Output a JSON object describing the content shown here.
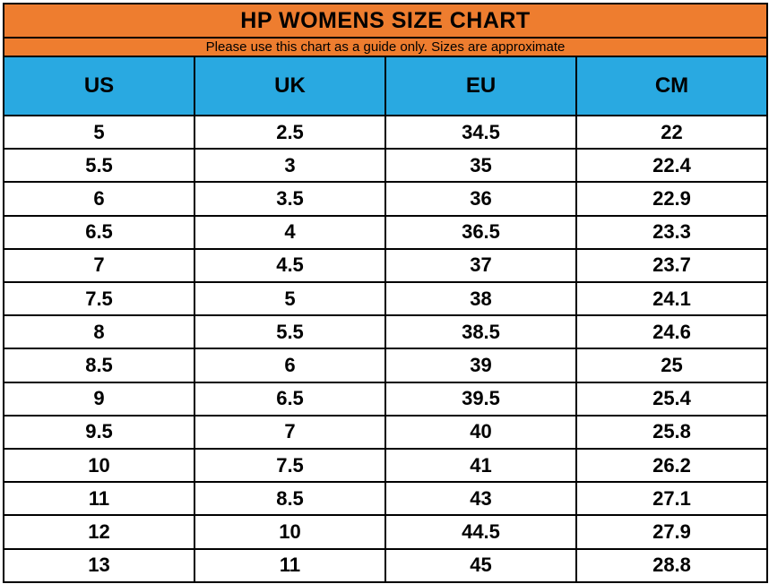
{
  "header": {
    "title": "HP WOMENS SIZE CHART",
    "subtitle": "Please use this chart as a guide only. Sizes are approximate"
  },
  "colors": {
    "title_band": "#ee7d2f",
    "header_band": "#29a9e1",
    "grid_border": "#000000",
    "row_background": "#ffffff",
    "text": "#000000"
  },
  "chart_data": {
    "type": "table",
    "title": "HP WOMENS SIZE CHART",
    "subtitle": "Please use this chart as a guide only. Sizes are approximate",
    "columns": [
      "US",
      "UK",
      "EU",
      "CM"
    ],
    "rows": [
      [
        "5",
        "2.5",
        "34.5",
        "22"
      ],
      [
        "5.5",
        "3",
        "35",
        "22.4"
      ],
      [
        "6",
        "3.5",
        "36",
        "22.9"
      ],
      [
        "6.5",
        "4",
        "36.5",
        "23.3"
      ],
      [
        "7",
        "4.5",
        "37",
        "23.7"
      ],
      [
        "7.5",
        "5",
        "38",
        "24.1"
      ],
      [
        "8",
        "5.5",
        "38.5",
        "24.6"
      ],
      [
        "8.5",
        "6",
        "39",
        "25"
      ],
      [
        "9",
        "6.5",
        "39.5",
        "25.4"
      ],
      [
        "9.5",
        "7",
        "40",
        "25.8"
      ],
      [
        "10",
        "7.5",
        "41",
        "26.2"
      ],
      [
        "11",
        "8.5",
        "43",
        "27.1"
      ],
      [
        "12",
        "10",
        "44.5",
        "27.9"
      ],
      [
        "13",
        "11",
        "45",
        "28.8"
      ]
    ]
  }
}
